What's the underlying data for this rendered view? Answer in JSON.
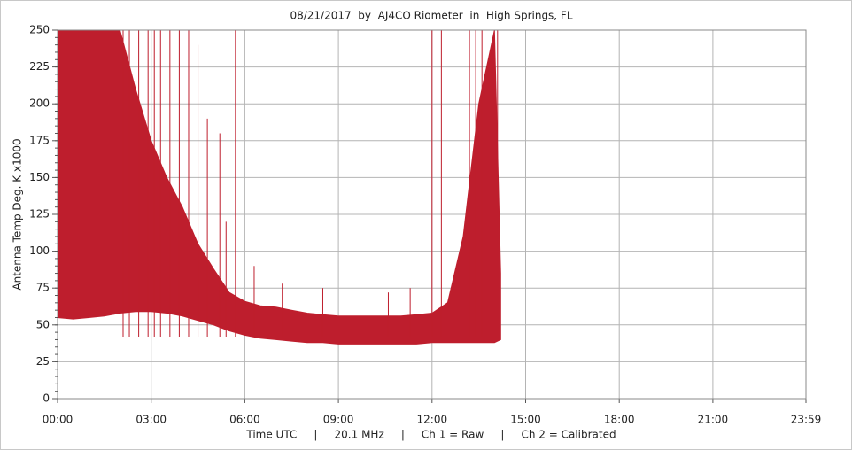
{
  "chart_data": {
    "type": "band",
    "title": "08/21/2017  by  AJ4CO Riometer  in  High Springs, FL",
    "ylabel": "Antenna Temp Deg. K x1000",
    "footer": "Time UTC     |     20.1 MHz     |     Ch 1 = Raw     |     Ch 2 = Calibrated",
    "color": "#be1e2d",
    "grid": true,
    "xlim": [
      0,
      23.983
    ],
    "ylim": [
      0,
      250
    ],
    "yticks": [
      0,
      25,
      50,
      75,
      100,
      125,
      150,
      175,
      200,
      225,
      250
    ],
    "xticks": [
      {
        "value": 0,
        "label": "00:00"
      },
      {
        "value": 3,
        "label": "03:00"
      },
      {
        "value": 6,
        "label": "06:00"
      },
      {
        "value": 9,
        "label": "09:00"
      },
      {
        "value": 12,
        "label": "12:00"
      },
      {
        "value": 15,
        "label": "15:00"
      },
      {
        "value": 18,
        "label": "18:00"
      },
      {
        "value": 21,
        "label": "21:00"
      },
      {
        "value": 23.983,
        "label": "23:59"
      }
    ],
    "x": [
      0,
      0.5,
      1,
      1.5,
      2,
      2.5,
      3,
      3.5,
      4,
      4.5,
      5,
      5.5,
      6,
      6.5,
      7,
      7.5,
      8,
      8.5,
      9,
      9.5,
      10,
      10.5,
      11,
      11.5,
      12,
      12.5,
      13,
      13.5,
      14,
      14.2
    ],
    "upper": [
      250,
      250,
      250,
      250,
      250,
      210,
      175,
      150,
      130,
      105,
      88,
      72,
      66,
      63,
      62,
      60,
      58,
      57,
      56,
      56,
      56,
      56,
      56,
      57,
      58,
      65,
      110,
      200,
      250,
      85
    ],
    "lower": [
      55,
      54,
      55,
      56,
      58,
      59,
      59,
      58,
      56,
      53,
      50,
      46,
      43,
      41,
      40,
      39,
      38,
      38,
      37,
      37,
      37,
      37,
      37,
      37,
      38,
      38,
      38,
      38,
      38,
      40
    ],
    "spike_x": [
      2.1,
      2.3,
      2.6,
      2.9,
      3.1,
      3.3,
      3.6,
      3.9,
      4.2,
      4.5,
      4.8,
      5.2,
      5.4,
      5.7,
      6.3,
      7.2,
      8.5,
      10.6,
      11.3,
      12,
      12.3,
      13.2,
      13.4,
      13.6,
      14.1
    ],
    "spike_values": [
      250,
      250,
      250,
      250,
      250,
      250,
      250,
      250,
      250,
      240,
      190,
      180,
      120,
      250,
      90,
      78,
      75,
      72,
      75,
      250,
      250,
      250,
      250,
      250,
      250
    ]
  }
}
